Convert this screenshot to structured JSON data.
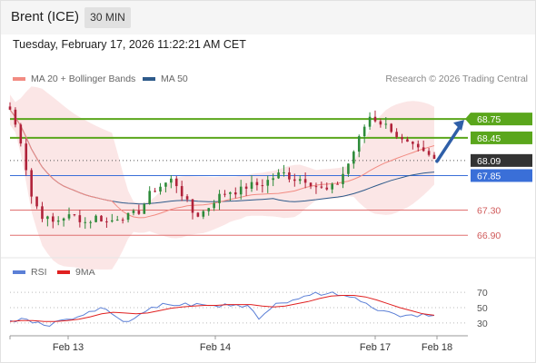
{
  "header": {
    "instrument": "Brent (ICE)",
    "timeframe": "30 MIN"
  },
  "timestamp": "Tuesday, February 17, 2026 11:22:21 AM CET",
  "legend": {
    "ma20_label": "MA 20 + Bollinger Bands",
    "ma50_label": "MA 50",
    "credit": "Research © 2026 Trading Central"
  },
  "rsi_legend": {
    "rsi_label": "RSI",
    "ma_label": "9MA"
  },
  "colors": {
    "ma20": "#f28b82",
    "ma50": "#2e5a8a",
    "bollinger_fill": "#fbe3e3",
    "candle_up": "#2e8b3a",
    "candle_down": "#b0223a",
    "resistance": "#5aa61c",
    "support_blue": "#3a6fd8",
    "support_red": "#e07070",
    "current_price": "#333333",
    "rsi": "#5b7fd6",
    "rsi_ma": "#e02020"
  },
  "chart_data": [
    {
      "type": "candlestick",
      "x_ticks": [
        "Feb 13",
        "Feb 14",
        "Feb 17",
        "Feb 18"
      ],
      "series": [
        {
          "name": "MA 20 + Bollinger Bands"
        },
        {
          "name": "MA 50"
        }
      ],
      "price_close_path": [
        68.9,
        68.4,
        67.5,
        67.2,
        67.1,
        67.2,
        67.2,
        67.1,
        67.2,
        67.1,
        67.2,
        67.2,
        67.3,
        67.6,
        67.7,
        67.8,
        67.5,
        67.2,
        67.3,
        67.5,
        67.6,
        67.6,
        67.7,
        67.7,
        67.8,
        67.9,
        67.8,
        67.8,
        67.7,
        67.6,
        67.7,
        68.0,
        68.4,
        68.8,
        68.7,
        68.6,
        68.4,
        68.3,
        68.2,
        68.1
      ],
      "levels": [
        {
          "label": "68.75",
          "value": 68.75,
          "kind": "resistance"
        },
        {
          "label": "68.45",
          "value": 68.45,
          "kind": "resistance"
        },
        {
          "label": "68.09",
          "value": 68.09,
          "kind": "current"
        },
        {
          "label": "67.85",
          "value": 67.85,
          "kind": "support"
        },
        {
          "label": "67.30",
          "value": 67.3,
          "kind": "support"
        },
        {
          "label": "66.90",
          "value": 66.9,
          "kind": "support"
        }
      ],
      "forecast": {
        "direction": "up",
        "from": 68.09,
        "to": 68.75
      }
    },
    {
      "type": "line",
      "title": "RSI",
      "series": [
        {
          "name": "RSI",
          "values": [
            33,
            36,
            30,
            27,
            32,
            35,
            38,
            45,
            50,
            42,
            32,
            36,
            45,
            50,
            54,
            53,
            52,
            54,
            53,
            55,
            54,
            53,
            35,
            48,
            56,
            60,
            65,
            70,
            68,
            66,
            64,
            58,
            50,
            46,
            42,
            40,
            38,
            39
          ]
        },
        {
          "name": "9MA",
          "values": [
            32,
            33,
            33,
            32,
            32,
            33,
            35,
            38,
            42,
            44,
            43,
            42,
            43,
            46,
            49,
            51,
            52,
            53,
            53,
            54,
            54,
            54,
            52,
            51,
            52,
            55,
            58,
            62,
            65,
            66,
            66,
            64,
            60,
            55,
            50,
            46,
            42,
            40
          ]
        }
      ],
      "y_ticks": [
        "70",
        "50",
        "30"
      ],
      "ylim": [
        18,
        82
      ]
    }
  ]
}
